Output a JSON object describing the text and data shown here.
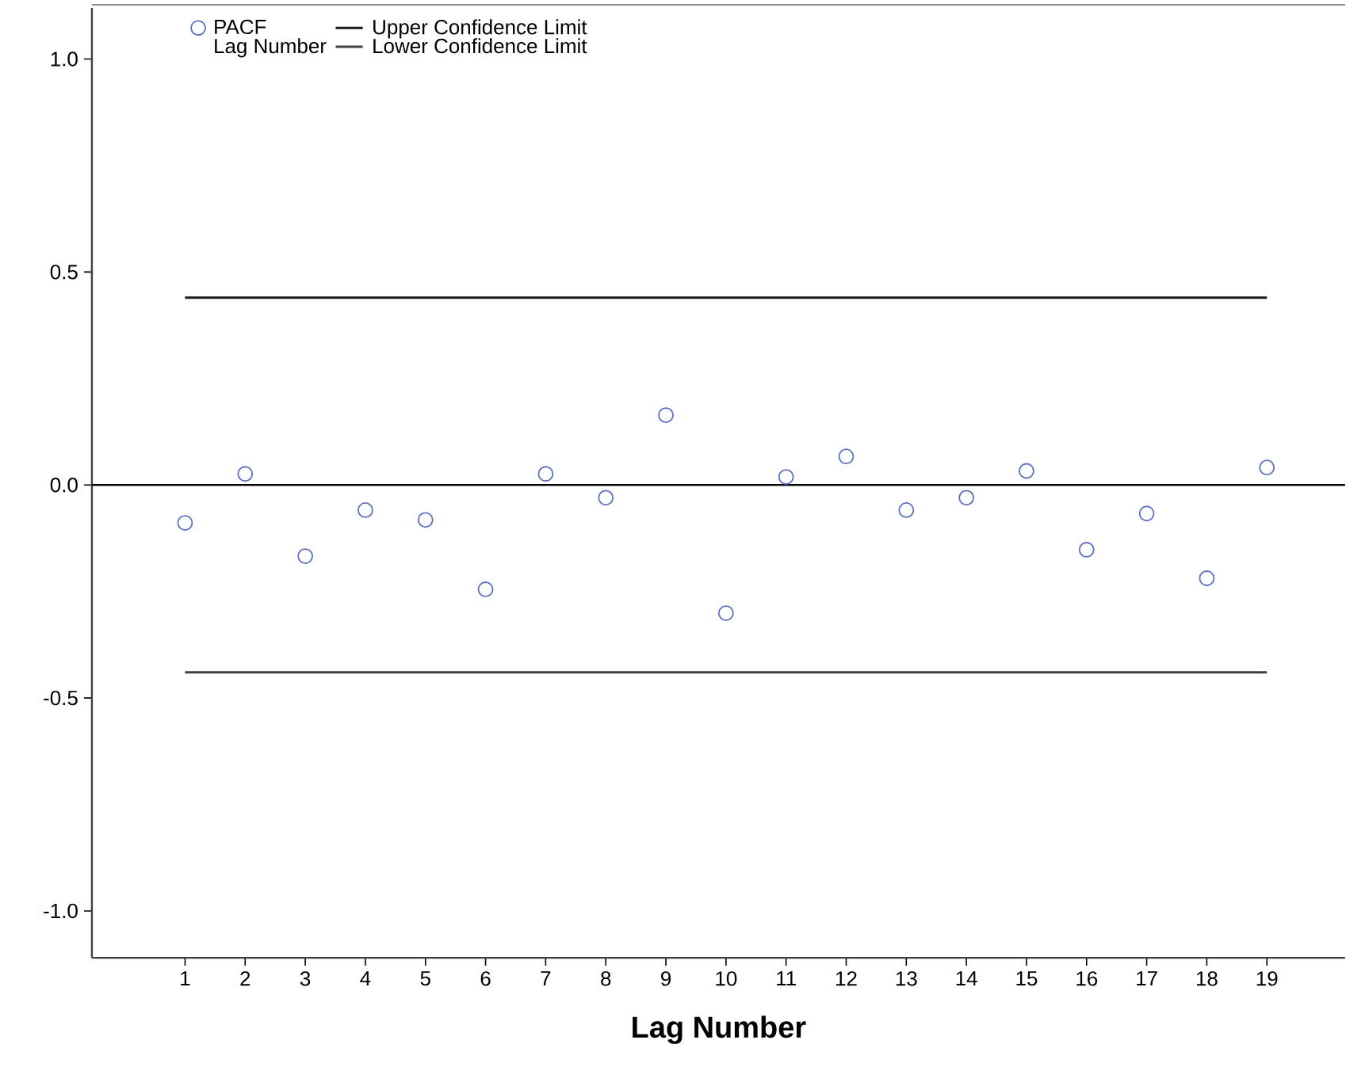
{
  "chart_data": {
    "type": "scatter",
    "xlabel": "Lag Number",
    "annotations": [
      "Lag Number"
    ],
    "x": [
      1,
      2,
      3,
      4,
      5,
      6,
      7,
      8,
      9,
      10,
      11,
      12,
      13,
      14,
      15,
      16,
      17,
      18,
      19
    ],
    "series": [
      {
        "name": "PACF",
        "color": "#5b6fc4",
        "marker": "circle",
        "values": [
          -0.089,
          0.026,
          -0.167,
          -0.059,
          -0.082,
          -0.245,
          0.026,
          -0.03,
          0.164,
          -0.301,
          0.019,
          0.067,
          -0.059,
          -0.03,
          0.033,
          -0.152,
          -0.067,
          -0.219,
          0.041
        ]
      },
      {
        "name": "Upper Confidence Limit",
        "type": "line",
        "color": "#1a1a1a",
        "values": [
          0.44,
          0.44,
          0.44,
          0.44,
          0.44,
          0.44,
          0.44,
          0.44,
          0.44,
          0.44,
          0.44,
          0.44,
          0.44,
          0.44,
          0.44,
          0.44,
          0.44,
          0.44,
          0.44
        ]
      },
      {
        "name": "Lower Confidence Limit",
        "type": "line",
        "color": "#404040",
        "values": [
          -0.44,
          -0.44,
          -0.44,
          -0.44,
          -0.44,
          -0.44,
          -0.44,
          -0.44,
          -0.44,
          -0.44,
          -0.44,
          -0.44,
          -0.44,
          -0.44,
          -0.44,
          -0.44,
          -0.44,
          -0.44,
          -0.44
        ]
      }
    ],
    "ref_lines": [
      {
        "axis": "y",
        "value": 0,
        "color": "#000000"
      }
    ],
    "xlim": [
      -0.55,
      20.3
    ],
    "ylim": [
      -1.11,
      1.12
    ],
    "xticks": [
      1,
      2,
      3,
      4,
      5,
      6,
      7,
      8,
      9,
      10,
      11,
      12,
      13,
      14,
      15,
      16,
      17,
      18,
      19
    ],
    "yticks": [
      {
        "value": -1,
        "label": "-1.0"
      },
      {
        "value": -0.5,
        "label": "-0.5"
      },
      {
        "value": 0,
        "label": "0.0"
      },
      {
        "value": 0.5,
        "label": "0.5"
      },
      {
        "value": 1,
        "label": "1.0"
      }
    ],
    "grid": false,
    "legend": "top left"
  }
}
